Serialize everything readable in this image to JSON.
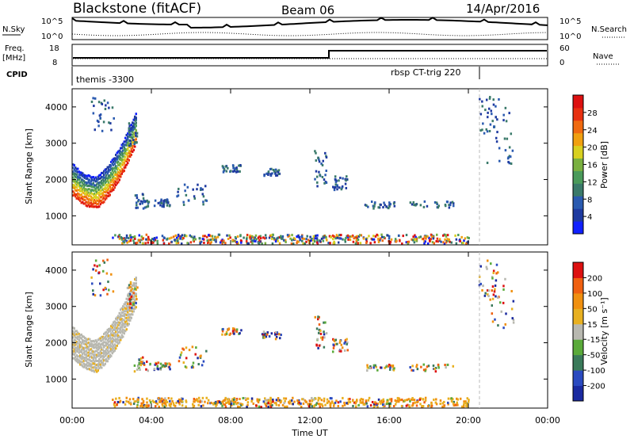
{
  "header": {
    "station": "Blackstone (fitACF)",
    "beam": "Beam 06",
    "date": "14/Apr/2016"
  },
  "top_panel": {
    "left_label": "N.Sky",
    "right_label": "N.Search",
    "left_ticks": [
      "10^5",
      "10^0"
    ],
    "right_ticks": [
      "10^5",
      "10^0"
    ]
  },
  "freq_panel": {
    "left_label_1": "Freq.",
    "left_label_2": "[MHz]",
    "left_ticks": [
      "18",
      "8"
    ],
    "right_label": "Nave",
    "right_ticks": [
      "60",
      "0"
    ]
  },
  "cpid_panel": {
    "label": "CPID",
    "segments": [
      "themis -3300",
      "rbsp CT-trig 220"
    ]
  },
  "colors": {
    "power_scale": [
      "#1020ff",
      "#1e3aa0",
      "#2a5ab0",
      "#3a7a6a",
      "#4a9a5a",
      "#7ab040",
      "#d8d020",
      "#f0a010",
      "#f06a10",
      "#e83010",
      "#dd1010"
    ],
    "velocity_scale": [
      "#1a2aa0",
      "#2a4ac0",
      "#3a7a5a",
      "#5aaa3a",
      "#b8b8b0",
      "#e8b020",
      "#f09010",
      "#f06010",
      "#dd1010"
    ]
  },
  "chart_data": [
    {
      "type": "heatmap",
      "name": "power",
      "xlabel": "",
      "ylabel": "Slant Range [km]",
      "ylim": [
        200,
        4500
      ],
      "yticks": [
        "1000",
        "2000",
        "3000",
        "4000"
      ],
      "colorbar_label": "Power [dB]",
      "colorbar_ticks": [
        "4",
        "8",
        "12",
        "16",
        "20",
        "24",
        "28"
      ],
      "colorbar_range": [
        0,
        32
      ]
    },
    {
      "type": "heatmap",
      "name": "velocity",
      "xlabel": "Time UT",
      "ylabel": "Slant Range [km]",
      "ylim": [
        200,
        4500
      ],
      "yticks": [
        "1000",
        "2000",
        "3000",
        "4000"
      ],
      "xticks": [
        "00:00",
        "04:00",
        "08:00",
        "12:00",
        "16:00",
        "20:00",
        "00:00"
      ],
      "colorbar_label": "Velocity [m s⁻¹]",
      "colorbar_ticks": [
        "-200",
        "-100",
        "-50",
        "-15",
        "15",
        "50",
        "100",
        "200"
      ]
    }
  ]
}
